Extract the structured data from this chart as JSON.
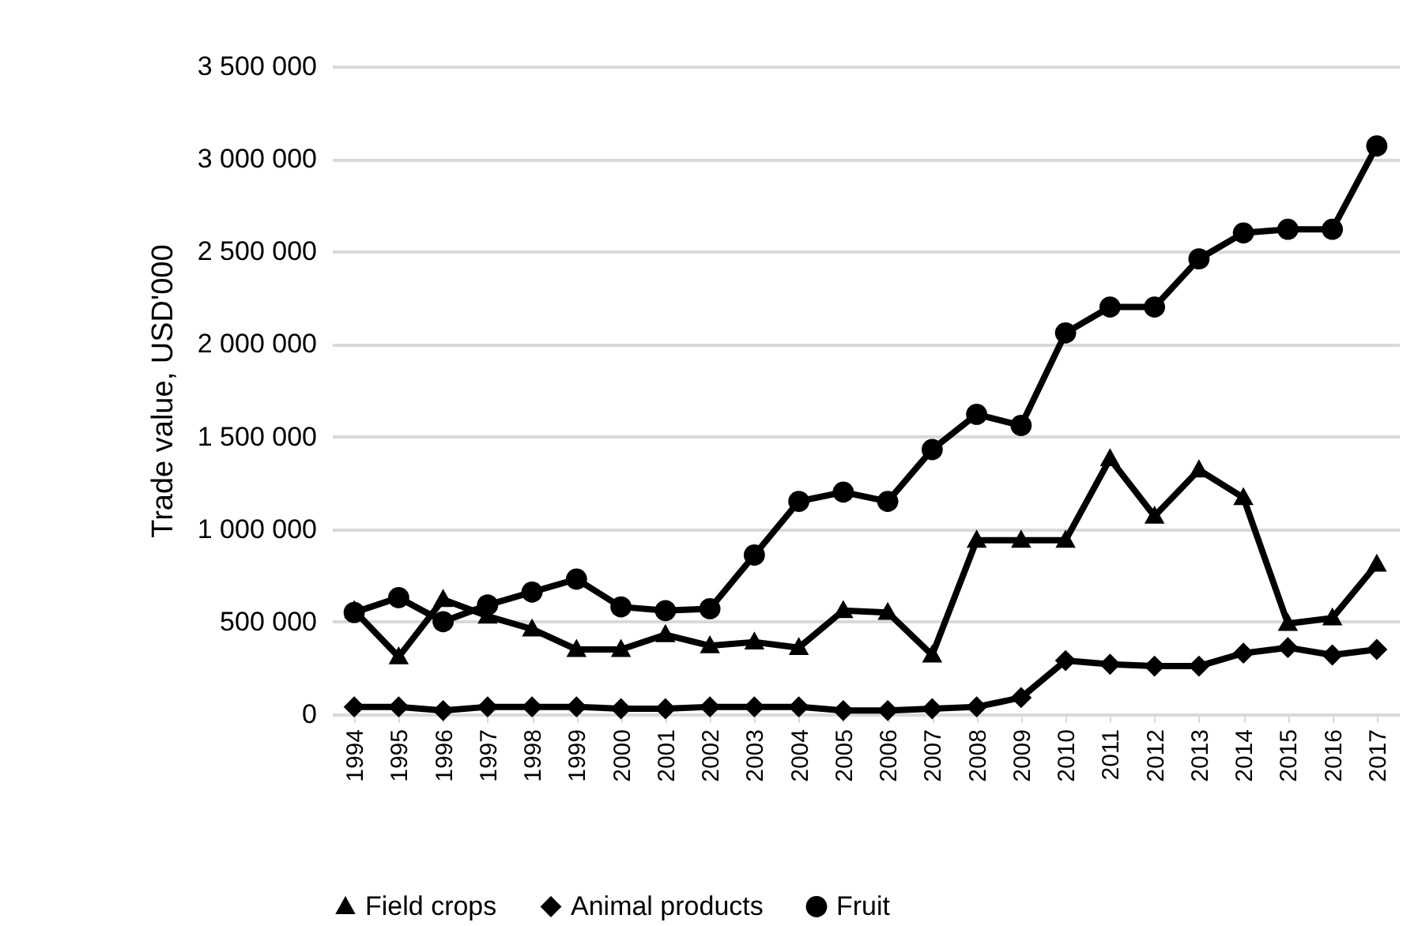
{
  "chart_data": {
    "type": "line",
    "ylabel": "Trade value, USD'000",
    "categories": [
      "1994",
      "1995",
      "1996",
      "1997",
      "1998",
      "1999",
      "2000",
      "2001",
      "2002",
      "2003",
      "2004",
      "2005",
      "2006",
      "2007",
      "2008",
      "2009",
      "2010",
      "2011",
      "2012",
      "2013",
      "2014",
      "2015",
      "2016",
      "2017"
    ],
    "series": [
      {
        "name": "Field crops",
        "color": "#000000",
        "marker": "triangle",
        "values": [
          560000,
          310000,
          620000,
          530000,
          460000,
          350000,
          350000,
          430000,
          370000,
          390000,
          360000,
          560000,
          550000,
          320000,
          940000,
          940000,
          940000,
          1380000,
          1070000,
          1320000,
          1170000,
          490000,
          520000,
          810000
        ]
      },
      {
        "name": "Animal products",
        "color": "#000000",
        "marker": "diamond",
        "values": [
          40000,
          40000,
          20000,
          40000,
          40000,
          40000,
          30000,
          30000,
          40000,
          40000,
          40000,
          20000,
          20000,
          30000,
          40000,
          90000,
          290000,
          270000,
          260000,
          260000,
          330000,
          360000,
          320000,
          350000
        ]
      },
      {
        "name": "Fruit",
        "color": "#000000",
        "marker": "circle",
        "values": [
          550000,
          630000,
          500000,
          590000,
          660000,
          730000,
          580000,
          560000,
          570000,
          860000,
          1150000,
          1200000,
          1150000,
          1430000,
          1620000,
          1560000,
          2060000,
          2200000,
          2200000,
          2460000,
          2600000,
          2620000,
          2620000,
          3070000
        ]
      }
    ],
    "ylim": [
      0,
      3500000
    ],
    "yticks": [
      0,
      {
        "value": 500000,
        "label": "500 000"
      },
      {
        "value": 1000000,
        "label": "1 000 000"
      },
      {
        "value": 1500000,
        "label": "1 500 000"
      },
      {
        "value": 2000000,
        "label": "2 000 000"
      },
      {
        "value": 2500000,
        "label": "2 500 000"
      },
      {
        "value": 3000000,
        "label": "3 000 000"
      },
      {
        "value": 3500000,
        "label": "3 500 000"
      }
    ],
    "grid": "y",
    "legend": "bottom",
    "line_style": "solid"
  }
}
